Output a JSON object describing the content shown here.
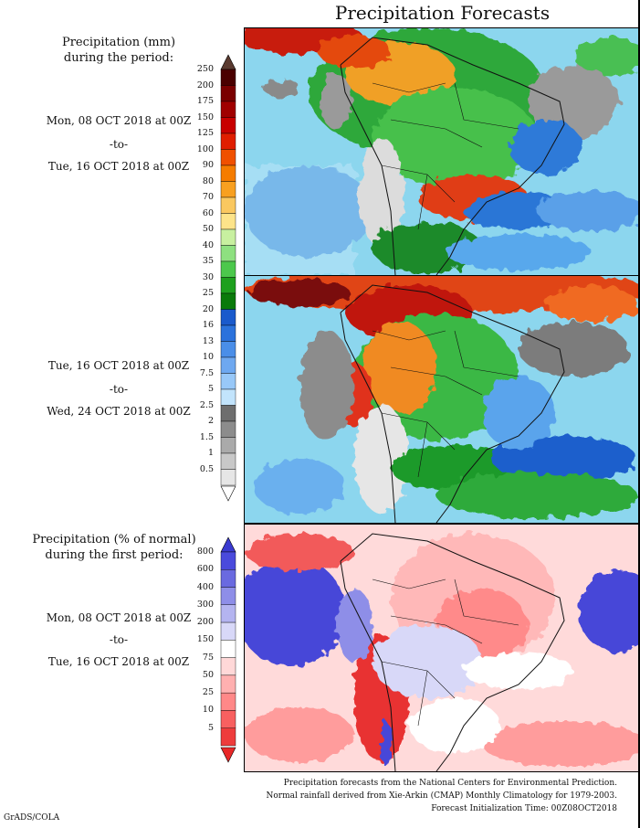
{
  "title": "Precipitation Forecasts",
  "panel1": {
    "header_line1": "Precipitation (mm)",
    "header_line2": "during the period:",
    "start": "Mon, 08 OCT 2018 at 00Z",
    "to": "-to-",
    "end": "Tue, 16 OCT 2018 at 00Z"
  },
  "panel2": {
    "start": "Tue, 16 OCT 2018 at 00Z",
    "to": "-to-",
    "end": "Wed, 24 OCT 2018 at 00Z"
  },
  "panel3": {
    "header_line1": "Precipitation (% of normal)",
    "header_line2": "during the first period:",
    "start": "Mon, 08 OCT 2018 at 00Z",
    "to": "-to-",
    "end": "Tue, 16 OCT 2018 at 00Z"
  },
  "colorbar_mm": {
    "labels": [
      "250",
      "200",
      "175",
      "150",
      "125",
      "100",
      "90",
      "80",
      "70",
      "60",
      "50",
      "40",
      "35",
      "30",
      "25",
      "20",
      "16",
      "13",
      "10",
      "7.5",
      "5",
      "2.5",
      "2",
      "1.5",
      "1",
      "0.5"
    ],
    "colors": [
      "#4a0000",
      "#7a0000",
      "#a00000",
      "#c80000",
      "#e01e00",
      "#f05000",
      "#f57c00",
      "#f8a020",
      "#fac860",
      "#fde48a",
      "#c8f0a0",
      "#8ee080",
      "#4cc84c",
      "#1ea01e",
      "#0a7a0a",
      "#1a5acc",
      "#2b72dc",
      "#4a8ee8",
      "#6ea8f0",
      "#98c8f8",
      "#c2e4fc",
      "#6e6e6e",
      "#8c8c8c",
      "#aaaaaa",
      "#c8c8c8",
      "#e6e6e6"
    ],
    "top_cap": "#5a3a30",
    "bottom_cap": "#ffffff"
  },
  "colorbar_pct": {
    "labels": [
      "800",
      "600",
      "400",
      "300",
      "200",
      "150",
      "75",
      "50",
      "25",
      "10",
      "5"
    ],
    "colors": [
      "#4a4adc",
      "#6a6ae0",
      "#8e8ee8",
      "#b4b4f0",
      "#d8d8f8",
      "#ffffff",
      "#ffd8d8",
      "#ffb0b0",
      "#ff8888",
      "#f86060",
      "#ee3c3c"
    ],
    "top_cap": "#3a3ad0",
    "bottom_cap": "#e82828"
  },
  "footer": {
    "line1": "Precipitation forecasts from the National Centers for Environmental Prediction.",
    "line2": "Normal rainfall derived from Xie-Arkin (CMAP) Monthly Climatology for 1979-2003.",
    "line3": "Forecast Initialization Time: 00Z08OCT2018"
  },
  "credit": "GrADS/COLA"
}
